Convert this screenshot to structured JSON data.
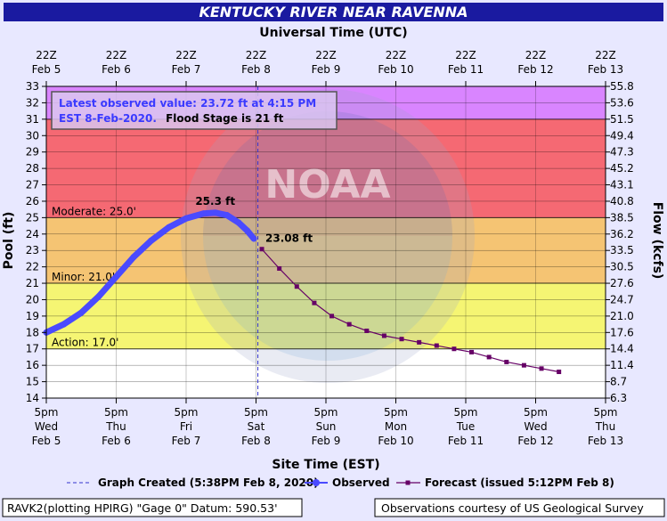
{
  "chart_data": {
    "type": "line",
    "title": "KENTUCKY RIVER NEAR RAVENNA",
    "top_axis_title": "Universal Time (UTC)",
    "top_ticks": [
      {
        "time": "22Z",
        "date": "Feb 5"
      },
      {
        "time": "22Z",
        "date": "Feb 6"
      },
      {
        "time": "22Z",
        "date": "Feb 7"
      },
      {
        "time": "22Z",
        "date": "Feb 8"
      },
      {
        "time": "22Z",
        "date": "Feb 9"
      },
      {
        "time": "22Z",
        "date": "Feb 10"
      },
      {
        "time": "22Z",
        "date": "Feb 11"
      },
      {
        "time": "22Z",
        "date": "Feb 12"
      },
      {
        "time": "22Z",
        "date": "Feb 13"
      }
    ],
    "bottom_axis_title": "Site Time (EST)",
    "bottom_ticks": [
      {
        "time": "5pm",
        "day": "Wed",
        "date": "Feb 5"
      },
      {
        "time": "5pm",
        "day": "Thu",
        "date": "Feb 6"
      },
      {
        "time": "5pm",
        "day": "Fri",
        "date": "Feb 7"
      },
      {
        "time": "5pm",
        "day": "Sat",
        "date": "Feb 8"
      },
      {
        "time": "5pm",
        "day": "Sun",
        "date": "Feb 9"
      },
      {
        "time": "5pm",
        "day": "Mon",
        "date": "Feb 10"
      },
      {
        "time": "5pm",
        "day": "Tue",
        "date": "Feb 11"
      },
      {
        "time": "5pm",
        "day": "Wed",
        "date": "Feb 12"
      },
      {
        "time": "5pm",
        "day": "Thu",
        "date": "Feb 13"
      }
    ],
    "xlim": [
      "2020-02-05T17:00",
      "2020-02-13T17:00"
    ],
    "ylabel": "Pool (ft)",
    "ylim": [
      14,
      33
    ],
    "yticks": [
      14,
      15,
      16,
      17,
      18,
      19,
      20,
      21,
      22,
      23,
      24,
      25,
      26,
      27,
      28,
      29,
      30,
      31,
      32,
      33
    ],
    "y2label": "Flow (kcfs)",
    "y2ticks": [
      "6.3",
      "8.7",
      "11.4",
      "14.4",
      "17.6",
      "21.0",
      "24.7",
      "27.6",
      "30.5",
      "33.5",
      "36.2",
      "38.5",
      "40.8",
      "43.1",
      "45.2",
      "47.3",
      "49.4",
      "51.5",
      "53.6",
      "55.8"
    ],
    "bands": [
      {
        "from": 14,
        "to": 17,
        "color": "#ffffff"
      },
      {
        "from": 17,
        "to": 21,
        "color": "#ffff00"
      },
      {
        "from": 21,
        "to": 25,
        "color": "#ffa500"
      },
      {
        "from": 25,
        "to": 31,
        "color": "#ff0000"
      },
      {
        "from": 31,
        "to": 33,
        "color": "#cc33ff"
      }
    ],
    "thresholds": [
      {
        "label": "Moderate: 25.0'",
        "value": 25
      },
      {
        "label": "Minor: 21.0'",
        "value": 21
      },
      {
        "label": "Action: 17.0'",
        "value": 17
      }
    ],
    "info_box": {
      "line1": "Latest observed value: 23.72 ft at 4:15 PM",
      "line2a": "EST 8-Feb-2020.",
      "line2b": "Flood Stage is 21 ft"
    },
    "created_time": "2020-02-08T17:38",
    "series": [
      {
        "name": "Observed",
        "color": "#4a4aff",
        "x": [
          "2020-02-05T17:00",
          "2020-02-05T23:00",
          "2020-02-06T05:00",
          "2020-02-06T11:00",
          "2020-02-06T17:00",
          "2020-02-06T23:00",
          "2020-02-07T05:00",
          "2020-02-07T11:00",
          "2020-02-07T17:00",
          "2020-02-07T23:00",
          "2020-02-08T03:00",
          "2020-02-08T07:00",
          "2020-02-08T11:00",
          "2020-02-08T14:00",
          "2020-02-08T16:15"
        ],
        "y": [
          18.0,
          18.5,
          19.2,
          20.2,
          21.4,
          22.6,
          23.6,
          24.4,
          24.95,
          25.25,
          25.3,
          25.15,
          24.7,
          24.2,
          23.72
        ]
      },
      {
        "name": "Forecast (issued 5:12PM Feb 8)",
        "color": "#660066",
        "x": [
          "2020-02-08T19:00",
          "2020-02-09T01:00",
          "2020-02-09T07:00",
          "2020-02-09T13:00",
          "2020-02-09T19:00",
          "2020-02-10T01:00",
          "2020-02-10T07:00",
          "2020-02-10T13:00",
          "2020-02-10T19:00",
          "2020-02-11T01:00",
          "2020-02-11T07:00",
          "2020-02-11T13:00",
          "2020-02-11T19:00",
          "2020-02-12T01:00",
          "2020-02-12T07:00",
          "2020-02-12T13:00",
          "2020-02-12T19:00",
          "2020-02-13T01:00"
        ],
        "y": [
          23.08,
          21.9,
          20.8,
          19.8,
          19.0,
          18.5,
          18.1,
          17.8,
          17.6,
          17.4,
          17.2,
          17.0,
          16.8,
          16.5,
          16.2,
          16.0,
          15.8,
          15.6
        ]
      }
    ],
    "annotations": [
      {
        "text": "25.3 ft",
        "series": "Observed",
        "kind": "crest"
      },
      {
        "text": "23.08 ft",
        "series": "Forecast (issued 5:12PM Feb 8)",
        "kind": "first"
      }
    ],
    "legend": {
      "position": "bottom",
      "created_label": "Graph Created (5:38PM Feb 8, 2020)",
      "observed_label": "Observed",
      "forecast_label": "Forecast (issued 5:12PM Feb 8)"
    },
    "footer": {
      "left": "RAVK2(plotting HPIRG) \"Gage 0\" Datum: 590.53'",
      "right": "Observations courtesy of US Geological Survey"
    },
    "watermark": "NOAA",
    "colors": {
      "title_bar": "#1a1aa0",
      "plot_frame_bg": "#e8e8ff",
      "grid": "#000000"
    }
  }
}
